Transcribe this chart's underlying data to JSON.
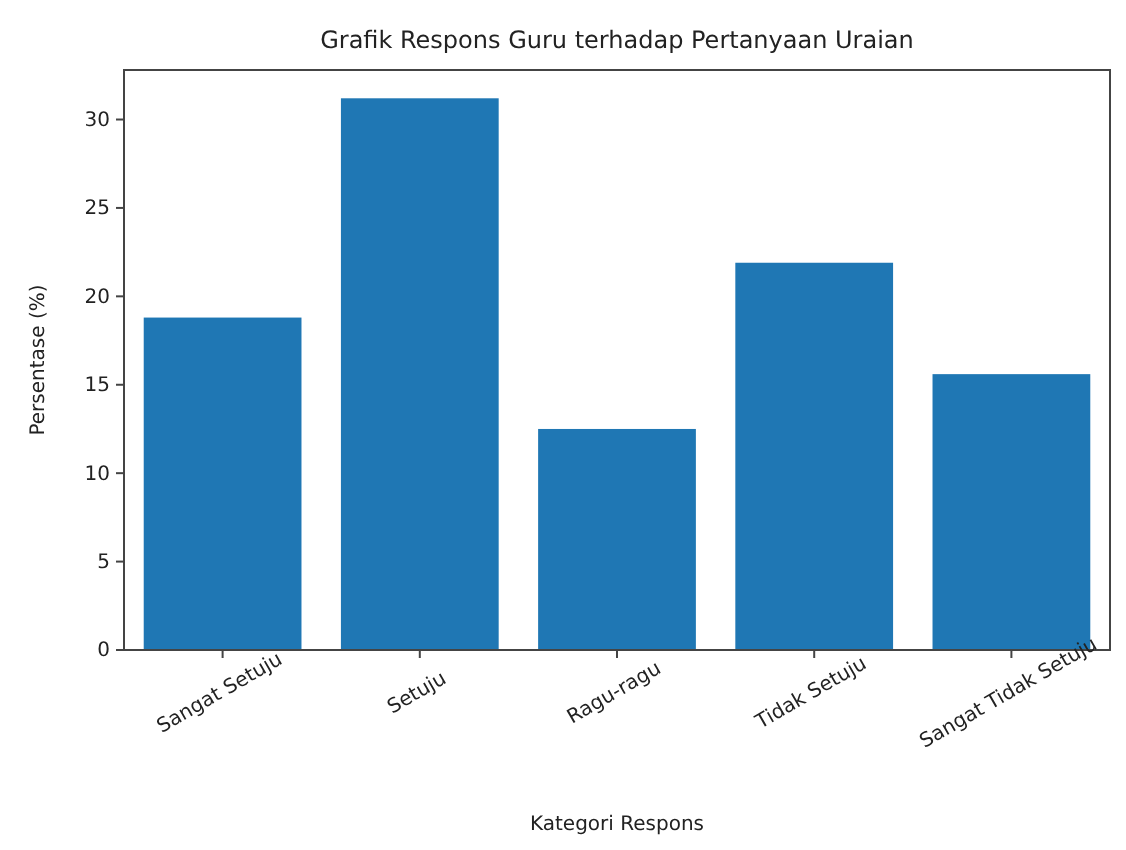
{
  "chart_data": {
    "type": "bar",
    "title": "Grafik Respons Guru terhadap Pertanyaan Uraian",
    "xlabel": "Kategori Respons",
    "ylabel": "Persentase (%)",
    "categories": [
      "Sangat Setuju",
      "Setuju",
      "Ragu-ragu",
      "Tidak Setuju",
      "Sangat Tidak Setuju"
    ],
    "values": [
      18.8,
      31.2,
      12.5,
      21.9,
      15.6
    ],
    "color": "#1f77b4",
    "ylim": [
      0,
      32.8
    ],
    "yticks": [
      0,
      5,
      10,
      15,
      20,
      25,
      30
    ],
    "grid": false
  }
}
